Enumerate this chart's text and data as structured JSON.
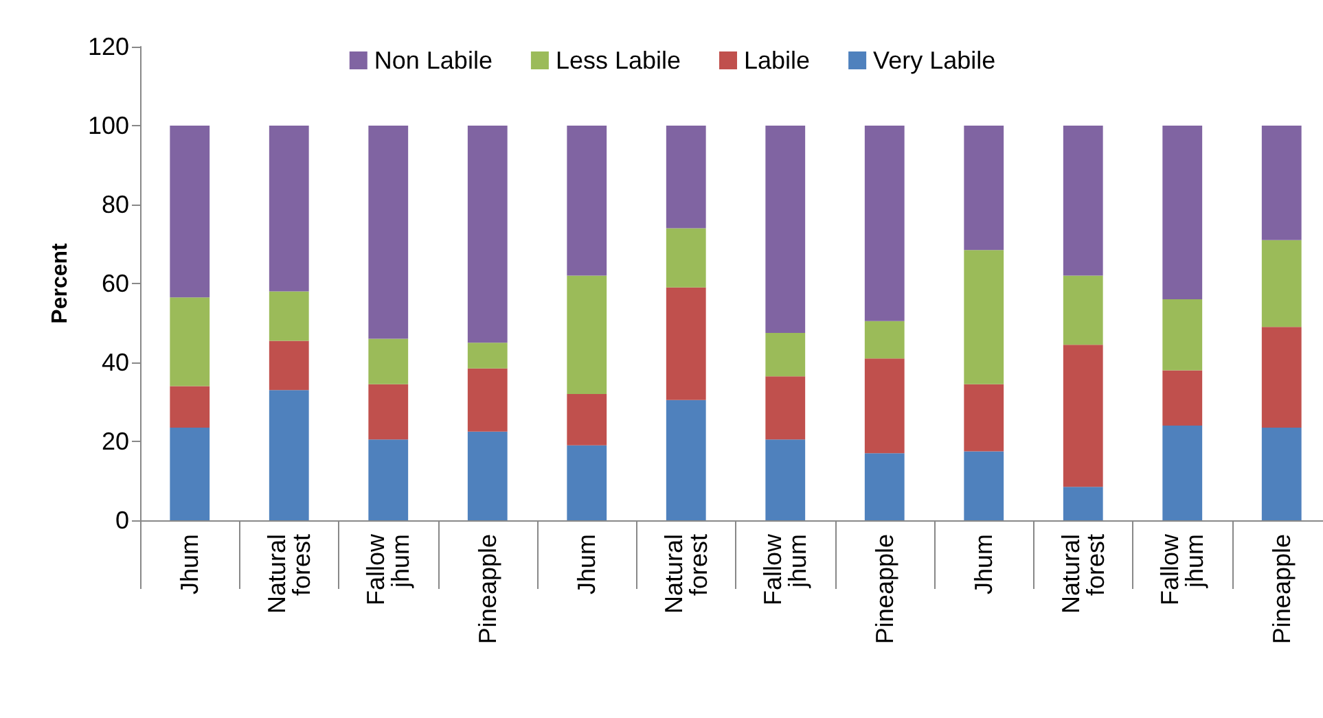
{
  "chart_data": {
    "type": "bar",
    "stacked": true,
    "ylabel": "Percent",
    "categories": [
      "Jhum",
      "Natural forest",
      "Fallow jhum",
      "Pineapple",
      "Jhum",
      "Natural forest",
      "Fallow jhum",
      "Pineapple",
      "Jhum",
      "Natural forest",
      "Fallow jhum",
      "Pineapple"
    ],
    "series": [
      {
        "name": "Very Labile",
        "color": "#4f81bd",
        "values": [
          23.5,
          33,
          20.5,
          22.5,
          19,
          30.5,
          20.5,
          17,
          17.5,
          8.5,
          24,
          23.5
        ]
      },
      {
        "name": "Labile",
        "color": "#c0504d",
        "values": [
          10.5,
          12.5,
          14,
          16,
          13,
          28.5,
          16,
          24,
          17,
          36,
          14,
          25.5
        ]
      },
      {
        "name": "Less Labile",
        "color": "#9bbb59",
        "values": [
          22.5,
          12.5,
          11.5,
          6.5,
          30,
          15,
          11,
          9.5,
          34,
          17.5,
          18,
          22
        ]
      },
      {
        "name": "Non Labile",
        "color": "#8064a2",
        "values": [
          43.5,
          42,
          54,
          55,
          38,
          26,
          52.5,
          49.5,
          31.5,
          38,
          44,
          29
        ]
      }
    ],
    "ylim": [
      0,
      120
    ],
    "yticks": [
      0,
      20,
      40,
      60,
      80,
      100,
      120
    ],
    "grid": false,
    "legend": "top"
  }
}
